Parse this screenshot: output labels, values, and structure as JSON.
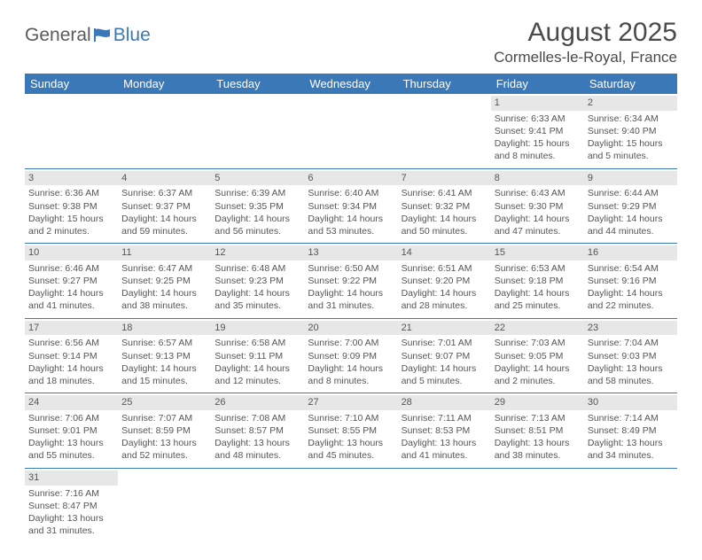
{
  "brand": {
    "part1": "General",
    "part2": "Blue"
  },
  "title": "August 2025",
  "location": "Cormelles-le-Royal, France",
  "colors": {
    "header_bg": "#3b78b8",
    "header_text": "#ffffff",
    "daynum_bg": "#e7e7e7",
    "cell_border": "#3b78b8",
    "text": "#555555",
    "brand_gray": "#5a5a5a",
    "brand_blue": "#3b78b8"
  },
  "weekdays": [
    "Sunday",
    "Monday",
    "Tuesday",
    "Wednesday",
    "Thursday",
    "Friday",
    "Saturday"
  ],
  "weeks": [
    [
      null,
      null,
      null,
      null,
      null,
      {
        "day": "1",
        "sunrise": "Sunrise: 6:33 AM",
        "sunset": "Sunset: 9:41 PM",
        "daylight": "Daylight: 15 hours and 8 minutes."
      },
      {
        "day": "2",
        "sunrise": "Sunrise: 6:34 AM",
        "sunset": "Sunset: 9:40 PM",
        "daylight": "Daylight: 15 hours and 5 minutes."
      }
    ],
    [
      {
        "day": "3",
        "sunrise": "Sunrise: 6:36 AM",
        "sunset": "Sunset: 9:38 PM",
        "daylight": "Daylight: 15 hours and 2 minutes."
      },
      {
        "day": "4",
        "sunrise": "Sunrise: 6:37 AM",
        "sunset": "Sunset: 9:37 PM",
        "daylight": "Daylight: 14 hours and 59 minutes."
      },
      {
        "day": "5",
        "sunrise": "Sunrise: 6:39 AM",
        "sunset": "Sunset: 9:35 PM",
        "daylight": "Daylight: 14 hours and 56 minutes."
      },
      {
        "day": "6",
        "sunrise": "Sunrise: 6:40 AM",
        "sunset": "Sunset: 9:34 PM",
        "daylight": "Daylight: 14 hours and 53 minutes."
      },
      {
        "day": "7",
        "sunrise": "Sunrise: 6:41 AM",
        "sunset": "Sunset: 9:32 PM",
        "daylight": "Daylight: 14 hours and 50 minutes."
      },
      {
        "day": "8",
        "sunrise": "Sunrise: 6:43 AM",
        "sunset": "Sunset: 9:30 PM",
        "daylight": "Daylight: 14 hours and 47 minutes."
      },
      {
        "day": "9",
        "sunrise": "Sunrise: 6:44 AM",
        "sunset": "Sunset: 9:29 PM",
        "daylight": "Daylight: 14 hours and 44 minutes."
      }
    ],
    [
      {
        "day": "10",
        "sunrise": "Sunrise: 6:46 AM",
        "sunset": "Sunset: 9:27 PM",
        "daylight": "Daylight: 14 hours and 41 minutes."
      },
      {
        "day": "11",
        "sunrise": "Sunrise: 6:47 AM",
        "sunset": "Sunset: 9:25 PM",
        "daylight": "Daylight: 14 hours and 38 minutes."
      },
      {
        "day": "12",
        "sunrise": "Sunrise: 6:48 AM",
        "sunset": "Sunset: 9:23 PM",
        "daylight": "Daylight: 14 hours and 35 minutes."
      },
      {
        "day": "13",
        "sunrise": "Sunrise: 6:50 AM",
        "sunset": "Sunset: 9:22 PM",
        "daylight": "Daylight: 14 hours and 31 minutes."
      },
      {
        "day": "14",
        "sunrise": "Sunrise: 6:51 AM",
        "sunset": "Sunset: 9:20 PM",
        "daylight": "Daylight: 14 hours and 28 minutes."
      },
      {
        "day": "15",
        "sunrise": "Sunrise: 6:53 AM",
        "sunset": "Sunset: 9:18 PM",
        "daylight": "Daylight: 14 hours and 25 minutes."
      },
      {
        "day": "16",
        "sunrise": "Sunrise: 6:54 AM",
        "sunset": "Sunset: 9:16 PM",
        "daylight": "Daylight: 14 hours and 22 minutes."
      }
    ],
    [
      {
        "day": "17",
        "sunrise": "Sunrise: 6:56 AM",
        "sunset": "Sunset: 9:14 PM",
        "daylight": "Daylight: 14 hours and 18 minutes."
      },
      {
        "day": "18",
        "sunrise": "Sunrise: 6:57 AM",
        "sunset": "Sunset: 9:13 PM",
        "daylight": "Daylight: 14 hours and 15 minutes."
      },
      {
        "day": "19",
        "sunrise": "Sunrise: 6:58 AM",
        "sunset": "Sunset: 9:11 PM",
        "daylight": "Daylight: 14 hours and 12 minutes."
      },
      {
        "day": "20",
        "sunrise": "Sunrise: 7:00 AM",
        "sunset": "Sunset: 9:09 PM",
        "daylight": "Daylight: 14 hours and 8 minutes."
      },
      {
        "day": "21",
        "sunrise": "Sunrise: 7:01 AM",
        "sunset": "Sunset: 9:07 PM",
        "daylight": "Daylight: 14 hours and 5 minutes."
      },
      {
        "day": "22",
        "sunrise": "Sunrise: 7:03 AM",
        "sunset": "Sunset: 9:05 PM",
        "daylight": "Daylight: 14 hours and 2 minutes."
      },
      {
        "day": "23",
        "sunrise": "Sunrise: 7:04 AM",
        "sunset": "Sunset: 9:03 PM",
        "daylight": "Daylight: 13 hours and 58 minutes."
      }
    ],
    [
      {
        "day": "24",
        "sunrise": "Sunrise: 7:06 AM",
        "sunset": "Sunset: 9:01 PM",
        "daylight": "Daylight: 13 hours and 55 minutes."
      },
      {
        "day": "25",
        "sunrise": "Sunrise: 7:07 AM",
        "sunset": "Sunset: 8:59 PM",
        "daylight": "Daylight: 13 hours and 52 minutes."
      },
      {
        "day": "26",
        "sunrise": "Sunrise: 7:08 AM",
        "sunset": "Sunset: 8:57 PM",
        "daylight": "Daylight: 13 hours and 48 minutes."
      },
      {
        "day": "27",
        "sunrise": "Sunrise: 7:10 AM",
        "sunset": "Sunset: 8:55 PM",
        "daylight": "Daylight: 13 hours and 45 minutes."
      },
      {
        "day": "28",
        "sunrise": "Sunrise: 7:11 AM",
        "sunset": "Sunset: 8:53 PM",
        "daylight": "Daylight: 13 hours and 41 minutes."
      },
      {
        "day": "29",
        "sunrise": "Sunrise: 7:13 AM",
        "sunset": "Sunset: 8:51 PM",
        "daylight": "Daylight: 13 hours and 38 minutes."
      },
      {
        "day": "30",
        "sunrise": "Sunrise: 7:14 AM",
        "sunset": "Sunset: 8:49 PM",
        "daylight": "Daylight: 13 hours and 34 minutes."
      }
    ],
    [
      {
        "day": "31",
        "sunrise": "Sunrise: 7:16 AM",
        "sunset": "Sunset: 8:47 PM",
        "daylight": "Daylight: 13 hours and 31 minutes."
      },
      null,
      null,
      null,
      null,
      null,
      null
    ]
  ]
}
